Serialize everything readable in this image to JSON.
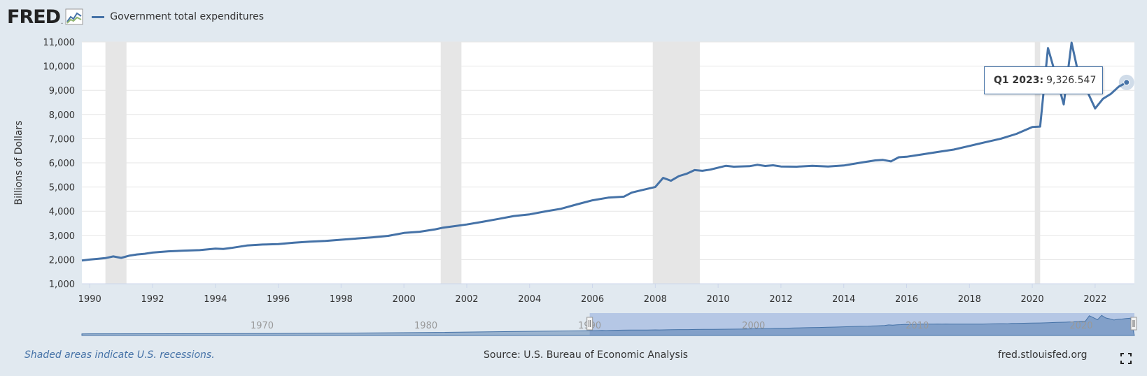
{
  "header": {
    "logo_text": "FRED",
    "logo_mark": ".",
    "legend_label": "Government total expenditures"
  },
  "tooltip": {
    "label": "Q1 2023:",
    "value": "9,326.547"
  },
  "footer": {
    "recession_note": "Shaded areas indicate U.S. recessions.",
    "source": "Source: U.S. Bureau of Economic Analysis",
    "url": "fred.stlouisfed.org"
  },
  "colors": {
    "series": "#4572a7",
    "recession": "#e6e6e6",
    "background": "#e1e9f0",
    "navigator_mask": "#b5c7e5"
  },
  "icons": [
    "fred-graph-icon",
    "fullscreen-icon"
  ],
  "chart_data": {
    "type": "line",
    "title": "",
    "xlabel": "",
    "ylabel": "Billions of Dollars",
    "ylim": [
      1000,
      11000
    ],
    "xlim": [
      1989.75,
      2023.25
    ],
    "y_ticks": [
      "1,000",
      "2,000",
      "3,000",
      "4,000",
      "5,000",
      "6,000",
      "7,000",
      "8,000",
      "9,000",
      "10,000",
      "11,000"
    ],
    "x_ticks": [
      "1990",
      "1992",
      "1994",
      "1996",
      "1998",
      "2000",
      "2002",
      "2004",
      "2006",
      "2008",
      "2010",
      "2012",
      "2014",
      "2016",
      "2018",
      "2020",
      "2022"
    ],
    "grid": true,
    "legend": "top-left",
    "recessions": [
      [
        1990.5,
        1991.17
      ],
      [
        2001.17,
        2001.83
      ],
      [
        2007.92,
        2009.42
      ],
      [
        2020.08,
        2020.25
      ]
    ],
    "series": [
      {
        "name": "Government total expenditures",
        "points": [
          [
            1989.75,
            1960
          ],
          [
            1990.0,
            2000
          ],
          [
            1990.25,
            2030
          ],
          [
            1990.5,
            2060
          ],
          [
            1990.75,
            2130
          ],
          [
            1991.0,
            2070
          ],
          [
            1991.25,
            2160
          ],
          [
            1991.5,
            2210
          ],
          [
            1991.75,
            2240
          ],
          [
            1992.0,
            2290
          ],
          [
            1992.5,
            2340
          ],
          [
            1993.0,
            2370
          ],
          [
            1993.5,
            2390
          ],
          [
            1994.0,
            2450
          ],
          [
            1994.25,
            2440
          ],
          [
            1994.5,
            2480
          ],
          [
            1995.0,
            2580
          ],
          [
            1995.5,
            2620
          ],
          [
            1996.0,
            2640
          ],
          [
            1996.5,
            2700
          ],
          [
            1997.0,
            2740
          ],
          [
            1997.5,
            2770
          ],
          [
            1998.0,
            2820
          ],
          [
            1998.5,
            2870
          ],
          [
            1999.0,
            2920
          ],
          [
            1999.5,
            2980
          ],
          [
            2000.0,
            3100
          ],
          [
            2000.5,
            3150
          ],
          [
            2001.0,
            3250
          ],
          [
            2001.25,
            3320
          ],
          [
            2001.5,
            3360
          ],
          [
            2002.0,
            3450
          ],
          [
            2002.5,
            3560
          ],
          [
            2003.0,
            3680
          ],
          [
            2003.5,
            3800
          ],
          [
            2004.0,
            3870
          ],
          [
            2004.5,
            3990
          ],
          [
            2005.0,
            4100
          ],
          [
            2005.5,
            4280
          ],
          [
            2006.0,
            4450
          ],
          [
            2006.5,
            4560
          ],
          [
            2007.0,
            4600
          ],
          [
            2007.25,
            4770
          ],
          [
            2007.5,
            4850
          ],
          [
            2008.0,
            5000
          ],
          [
            2008.25,
            5380
          ],
          [
            2008.5,
            5260
          ],
          [
            2008.75,
            5450
          ],
          [
            2009.0,
            5550
          ],
          [
            2009.25,
            5700
          ],
          [
            2009.5,
            5670
          ],
          [
            2009.75,
            5720
          ],
          [
            2010.0,
            5800
          ],
          [
            2010.25,
            5880
          ],
          [
            2010.5,
            5840
          ],
          [
            2011.0,
            5860
          ],
          [
            2011.25,
            5920
          ],
          [
            2011.5,
            5870
          ],
          [
            2011.75,
            5900
          ],
          [
            2012.0,
            5850
          ],
          [
            2012.5,
            5840
          ],
          [
            2013.0,
            5880
          ],
          [
            2013.5,
            5850
          ],
          [
            2014.0,
            5890
          ],
          [
            2014.5,
            6000
          ],
          [
            2015.0,
            6100
          ],
          [
            2015.25,
            6120
          ],
          [
            2015.5,
            6060
          ],
          [
            2015.75,
            6230
          ],
          [
            2016.0,
            6250
          ],
          [
            2016.5,
            6350
          ],
          [
            2017.0,
            6450
          ],
          [
            2017.5,
            6550
          ],
          [
            2018.0,
            6700
          ],
          [
            2018.5,
            6850
          ],
          [
            2019.0,
            7000
          ],
          [
            2019.5,
            7200
          ],
          [
            2020.0,
            7480
          ],
          [
            2020.25,
            7500
          ],
          [
            2020.5,
            10750
          ],
          [
            2020.75,
            9600
          ],
          [
            2021.0,
            8420
          ],
          [
            2021.25,
            10970
          ],
          [
            2021.5,
            9500
          ],
          [
            2021.75,
            8950
          ],
          [
            2022.0,
            8250
          ],
          [
            2022.25,
            8650
          ],
          [
            2022.5,
            8850
          ],
          [
            2022.75,
            9150
          ],
          [
            2023.0,
            9326.547
          ]
        ]
      }
    ],
    "navigator": {
      "ticks": [
        "1970",
        "1980",
        "1990",
        "2000",
        "2010",
        "2020"
      ],
      "selected_range": [
        "1990",
        "2023"
      ]
    }
  }
}
